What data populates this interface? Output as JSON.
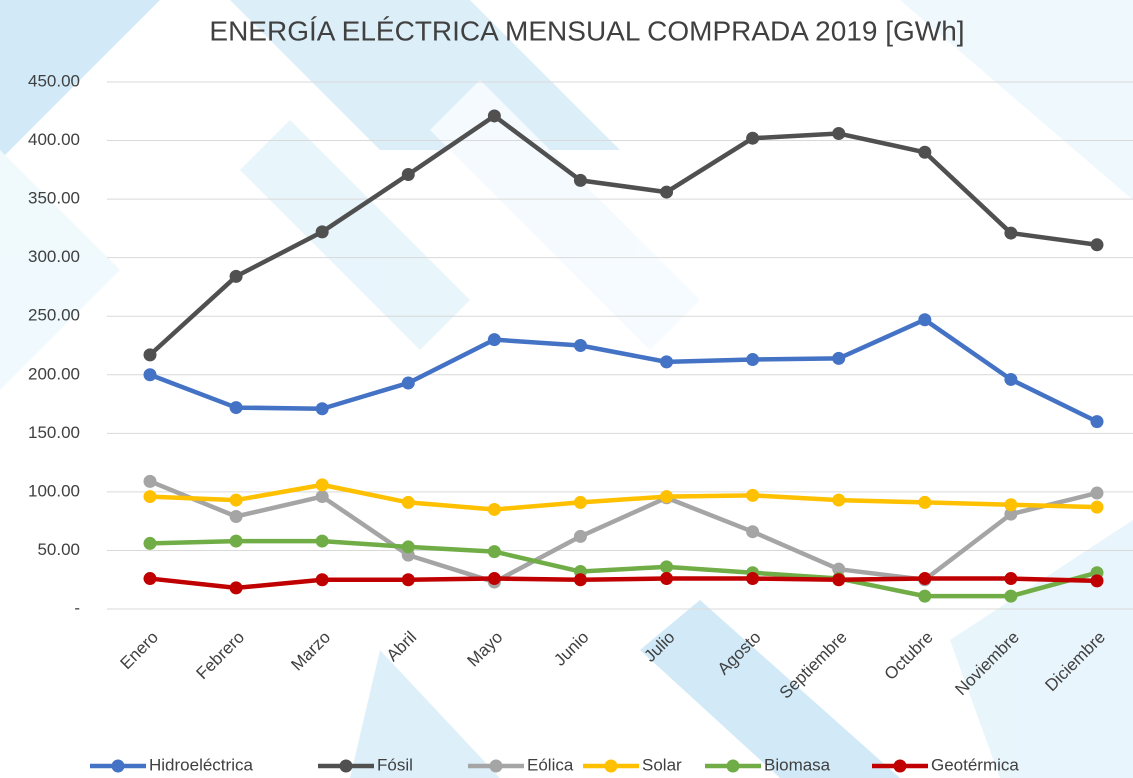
{
  "chart_data": {
    "type": "line",
    "title": "ENERGÍA ELÉCTRICA MENSUAL COMPRADA 2019 [GWh]",
    "categories": [
      "Enero",
      "Febrero",
      "Marzo",
      "Abril",
      "Mayo",
      "Junio",
      "Julio",
      "Agosto",
      "Septiembre",
      "Octubre",
      "Noviembre",
      "Diciembre"
    ],
    "series": [
      {
        "name": "Hidroeléctrica",
        "color": "#4472c4",
        "values": [
          200,
          172,
          171,
          193,
          230,
          225,
          211,
          213,
          214,
          247,
          196,
          160
        ]
      },
      {
        "name": "Fósil",
        "color": "#505050",
        "values": [
          217,
          284,
          322,
          371,
          421,
          366,
          356,
          402,
          406,
          390,
          321,
          311
        ]
      },
      {
        "name": "Eólica",
        "color": "#a5a5a5",
        "values": [
          109,
          79,
          96,
          46,
          23,
          62,
          95,
          66,
          34,
          25,
          81,
          99
        ]
      },
      {
        "name": "Solar",
        "color": "#ffc000",
        "values": [
          96,
          93,
          106,
          91,
          85,
          91,
          96,
          97,
          93,
          91,
          89,
          87
        ]
      },
      {
        "name": "Biomasa",
        "color": "#70ad47",
        "values": [
          56,
          58,
          58,
          53,
          49,
          32,
          36,
          31,
          26,
          11,
          11,
          31
        ]
      },
      {
        "name": "Geotérmica",
        "color": "#c00000",
        "values": [
          26,
          18,
          25,
          25,
          26,
          25,
          26,
          26,
          25,
          26,
          26,
          24
        ]
      }
    ],
    "ylim": [
      0,
      450
    ],
    "yticks": [
      {
        "value": 0,
        "label": "-"
      },
      {
        "value": 50,
        "label": "50.00"
      },
      {
        "value": 100,
        "label": "100.00"
      },
      {
        "value": 150,
        "label": "150.00"
      },
      {
        "value": 200,
        "label": "200.00"
      },
      {
        "value": 250,
        "label": "250.00"
      },
      {
        "value": 300,
        "label": "300.00"
      },
      {
        "value": 350,
        "label": "350.00"
      },
      {
        "value": 400,
        "label": "400.00"
      },
      {
        "value": 450,
        "label": "450.00"
      }
    ],
    "grid": true,
    "legend": "bottom"
  }
}
